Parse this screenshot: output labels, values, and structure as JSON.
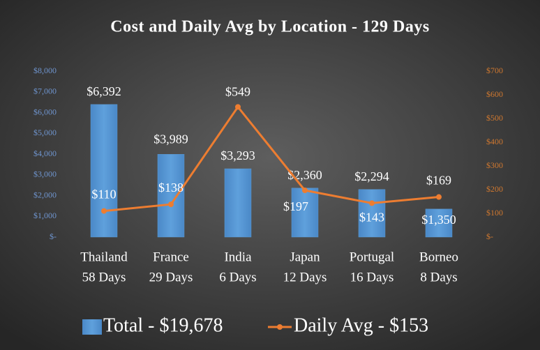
{
  "chart_data": {
    "type": "bar-line",
    "title": "Cost and Daily Avg by Location - 129 Days",
    "categories": [
      [
        "Thailand",
        "58 Days"
      ],
      [
        "France",
        "29 Days"
      ],
      [
        "India",
        "6 Days"
      ],
      [
        "Japan",
        "12 Days"
      ],
      [
        "Portugal",
        "16 Days"
      ],
      [
        "Borneo",
        "8 Days"
      ]
    ],
    "series": [
      {
        "name": "Total - $19,678",
        "type": "bar",
        "color": "#5b9bd5",
        "values": [
          6392,
          3989,
          3293,
          2360,
          2294,
          1350
        ],
        "value_labels": [
          "$6,392",
          "$3,989",
          "$3,293",
          "$2,360",
          "$2,294",
          "$1,350"
        ]
      },
      {
        "name": "Daily Avg - $153",
        "type": "line",
        "axis": "y2",
        "color": "#ed7d31",
        "values": [
          110,
          138,
          549,
          197,
          143,
          169
        ],
        "value_labels": [
          "$110",
          "$138",
          "$549",
          "$197",
          "$143",
          "$169"
        ]
      }
    ],
    "ylim": [
      0,
      8000
    ],
    "yticks": [
      {
        "value": 0,
        "label": "$-"
      },
      {
        "value": 1000,
        "label": "$1,000"
      },
      {
        "value": 2000,
        "label": "$2,000"
      },
      {
        "value": 3000,
        "label": "$3,000"
      },
      {
        "value": 4000,
        "label": "$4,000"
      },
      {
        "value": 5000,
        "label": "$5,000"
      },
      {
        "value": 6000,
        "label": "$6,000"
      },
      {
        "value": 7000,
        "label": "$7,000"
      },
      {
        "value": 8000,
        "label": "$8,000"
      }
    ],
    "y2lim": [
      0,
      700
    ],
    "y2ticks": [
      {
        "value": 0,
        "label": "$-"
      },
      {
        "value": 100,
        "label": "$100"
      },
      {
        "value": 200,
        "label": "$200"
      },
      {
        "value": 300,
        "label": "$300"
      },
      {
        "value": 400,
        "label": "$400"
      },
      {
        "value": 500,
        "label": "$500"
      },
      {
        "value": 600,
        "label": "$600"
      },
      {
        "value": 700,
        "label": "$700"
      }
    ],
    "legend": "bottom"
  }
}
